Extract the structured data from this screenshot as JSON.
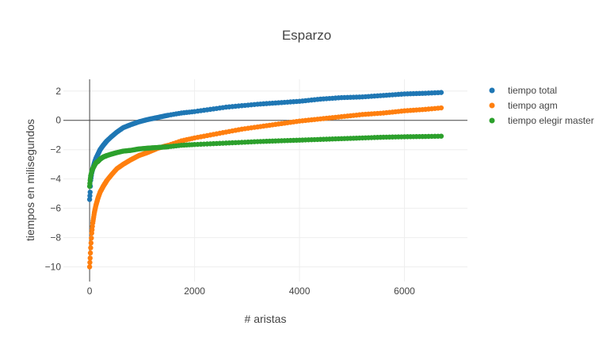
{
  "chart_data": {
    "type": "scatter",
    "title": "Esparzo",
    "xlabel": "# aristas",
    "ylabel": "tiempos en milisegundos",
    "xlim": [
      -500,
      7200
    ],
    "ylim": [
      -11,
      2.8
    ],
    "xticks": [
      0,
      2000,
      4000,
      6000
    ],
    "xtick_labels": [
      "0",
      "2000",
      "4000",
      "6000"
    ],
    "yticks": [
      2,
      0,
      -2,
      -4,
      -6,
      -8,
      -10
    ],
    "ytick_labels": [
      "2",
      "0",
      "−2",
      "−4",
      "−6",
      "−8",
      "−10"
    ],
    "grid": true,
    "legend_position": "top-right",
    "series": [
      {
        "name": "tiempo total",
        "color": "#1f77b4",
        "x": [
          0,
          10,
          20,
          40,
          60,
          90,
          120,
          160,
          200,
          260,
          330,
          420,
          520,
          640,
          780,
          940,
          1100,
          1300,
          1500,
          1750,
          2000,
          2300,
          2600,
          2900,
          3200,
          3600,
          4000,
          4400,
          4800,
          5200,
          5600,
          6000,
          6400,
          6700
        ],
        "y": [
          -5.4,
          -4.9,
          -4.1,
          -3.6,
          -3.3,
          -2.9,
          -2.6,
          -2.3,
          -2.0,
          -1.7,
          -1.4,
          -1.1,
          -0.8,
          -0.5,
          -0.3,
          -0.1,
          0.05,
          0.2,
          0.35,
          0.5,
          0.6,
          0.75,
          0.9,
          1.0,
          1.1,
          1.2,
          1.3,
          1.45,
          1.55,
          1.6,
          1.7,
          1.8,
          1.85,
          1.9
        ]
      },
      {
        "name": "tiempo agm",
        "color": "#ff7f0e",
        "x": [
          0,
          10,
          20,
          40,
          60,
          90,
          120,
          160,
          200,
          260,
          330,
          420,
          520,
          640,
          780,
          940,
          1100,
          1300,
          1500,
          1750,
          2000,
          2300,
          2600,
          2900,
          3200,
          3600,
          4000,
          4400,
          4800,
          5200,
          5600,
          6000,
          6400,
          6700
        ],
        "y": [
          -10.0,
          -9.4,
          -8.7,
          -7.7,
          -7.0,
          -6.3,
          -5.8,
          -5.3,
          -4.9,
          -4.5,
          -4.1,
          -3.7,
          -3.3,
          -3.0,
          -2.7,
          -2.4,
          -2.2,
          -1.9,
          -1.7,
          -1.4,
          -1.2,
          -1.0,
          -0.8,
          -0.6,
          -0.45,
          -0.25,
          -0.05,
          0.1,
          0.25,
          0.4,
          0.5,
          0.65,
          0.75,
          0.85
        ]
      },
      {
        "name": "tiempo elegir master",
        "color": "#2ca02c",
        "x": [
          0,
          10,
          20,
          40,
          60,
          90,
          120,
          160,
          200,
          260,
          330,
          420,
          520,
          640,
          780,
          940,
          1100,
          1300,
          1500,
          1750,
          2000,
          2300,
          2600,
          2900,
          3200,
          3600,
          4000,
          4400,
          4800,
          5200,
          5600,
          6000,
          6400,
          6700
        ],
        "y": [
          -4.5,
          -4.1,
          -3.8,
          -3.5,
          -3.3,
          -3.1,
          -2.9,
          -2.8,
          -2.65,
          -2.5,
          -2.4,
          -2.3,
          -2.2,
          -2.1,
          -2.05,
          -1.95,
          -1.9,
          -1.85,
          -1.8,
          -1.7,
          -1.65,
          -1.6,
          -1.55,
          -1.5,
          -1.45,
          -1.4,
          -1.35,
          -1.3,
          -1.25,
          -1.2,
          -1.15,
          -1.12,
          -1.1,
          -1.08
        ]
      }
    ]
  }
}
